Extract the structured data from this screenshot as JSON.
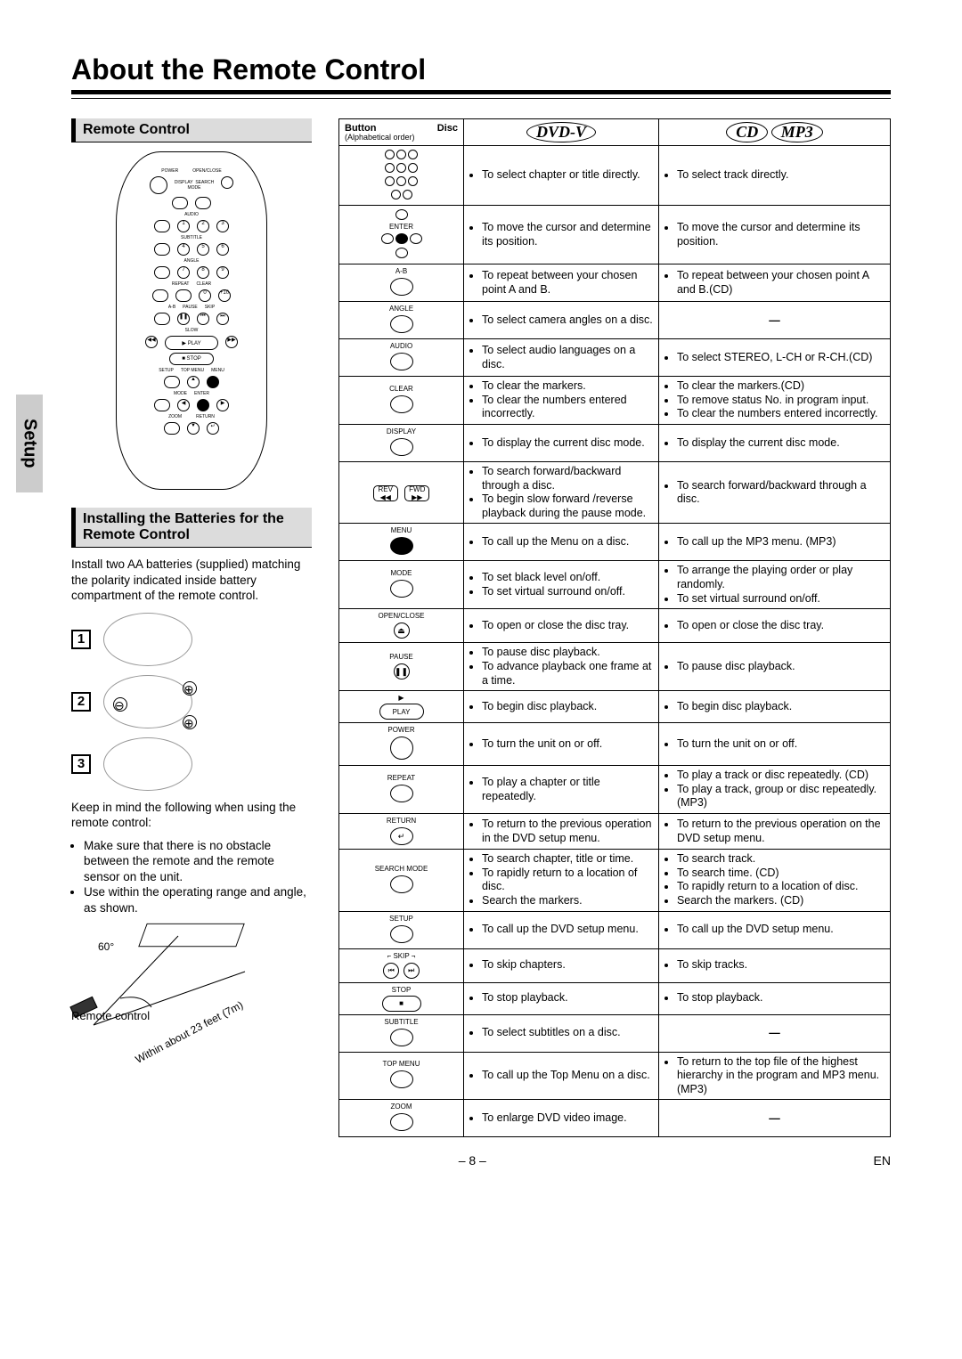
{
  "page_title": "About the Remote Control",
  "setup_tab": "Setup",
  "sections": {
    "remote_control": "Remote Control",
    "installing": "Installing the Batteries for the Remote Control"
  },
  "install_text": "Install two AA batteries (supplied) matching the polarity indicated inside battery compartment of the remote control.",
  "keep_in_mind": "Keep in mind the following when using the remote control:",
  "bullets": [
    "Make sure that there is no obstacle between the remote and the remote sensor on the unit.",
    "Use within the operating range and angle, as shown."
  ],
  "range": {
    "angle": "60°",
    "remote_label": "Remote control",
    "distance": "Within about 23 feet (7m)"
  },
  "steps": [
    "1",
    "2",
    "3"
  ],
  "table": {
    "header": {
      "btn": "Button",
      "disc": "Disc",
      "order": "(Alphabetical order)",
      "dvdv": "DVD-V",
      "cd": "CD",
      "mp3": "MP3"
    },
    "rows": [
      {
        "button": "numpad",
        "dvd": [
          "To select chapter or title directly."
        ],
        "cd": [
          "To select track directly."
        ]
      },
      {
        "button": "arrows",
        "label": "ENTER",
        "dvd": [
          "To move the cursor and determine its position."
        ],
        "cd": [
          "To move the cursor and determine its position."
        ]
      },
      {
        "button": "oval",
        "label": "A-B",
        "dvd": [
          "To repeat between your chosen point A and B."
        ],
        "cd": [
          "To repeat between your chosen point A and B.(CD)"
        ]
      },
      {
        "button": "oval",
        "label": "ANGLE",
        "dvd": [
          "To select camera angles on a disc."
        ],
        "cd": "dash"
      },
      {
        "button": "oval",
        "label": "AUDIO",
        "dvd": [
          "To select audio languages on a disc."
        ],
        "cd": [
          "To select STEREO, L-CH or R-CH.(CD)"
        ]
      },
      {
        "button": "oval",
        "label": "CLEAR",
        "dvd": [
          "To clear the markers.",
          "To clear the numbers entered incorrectly."
        ],
        "cd": [
          "To clear the markers.(CD)",
          "To remove status No. in program input.",
          "To clear the numbers entered incorrectly."
        ]
      },
      {
        "button": "oval",
        "label": "DISPLAY",
        "dvd": [
          "To display the current disc mode."
        ],
        "cd": [
          "To display the current disc mode."
        ]
      },
      {
        "button": "revfwd",
        "label": "REV / FWD",
        "dvd": [
          "To search forward/backward through a disc.",
          "To begin slow forward /reverse playback during the pause mode."
        ],
        "cd": [
          "To search forward/backward through a disc."
        ]
      },
      {
        "button": "filled",
        "label": "MENU",
        "dvd": [
          "To call up the Menu on a disc."
        ],
        "cd": [
          "To call up the MP3 menu. (MP3)"
        ]
      },
      {
        "button": "oval",
        "label": "MODE",
        "dvd": [
          "To set black level on/off.",
          "To set virtual surround on/off."
        ],
        "cd": [
          "To arrange the playing order or play randomly.",
          "To set virtual surround on/off."
        ]
      },
      {
        "button": "small",
        "label": "OPEN/CLOSE",
        "sym": "⏏",
        "dvd": [
          "To open or close the disc tray."
        ],
        "cd": [
          "To open or close the disc tray."
        ]
      },
      {
        "button": "small",
        "label": "PAUSE",
        "sym": "❚❚",
        "dvd": [
          "To pause disc playback.",
          "To advance playback one frame at a time."
        ],
        "cd": [
          "To pause disc playback."
        ]
      },
      {
        "button": "playbar",
        "label": "PLAY",
        "sym": "▶",
        "dvd": [
          "To begin disc playback."
        ],
        "cd": [
          "To begin disc playback."
        ]
      },
      {
        "button": "bigcircle",
        "label": "POWER",
        "dvd": [
          "To turn the unit on or off."
        ],
        "cd": [
          "To turn the unit on or off."
        ]
      },
      {
        "button": "oval",
        "label": "REPEAT",
        "dvd": [
          "To play a chapter or title repeatedly."
        ],
        "cd": [
          "To play a track or disc repeatedly. (CD)",
          "To play a track, group or disc repeatedly. (MP3)"
        ]
      },
      {
        "button": "return",
        "label": "RETURN",
        "dvd": [
          "To return to the previous operation in the DVD setup menu."
        ],
        "cd": [
          "To return to the previous operation on the DVD setup menu."
        ]
      },
      {
        "button": "oval",
        "label": "SEARCH MODE",
        "dvd": [
          "To search chapter, title or time.",
          "To rapidly return to a location of disc.",
          "Search the markers."
        ],
        "cd": [
          "To search track.",
          "To search time. (CD)",
          "To rapidly return to a location of disc.",
          "Search the markers. (CD)"
        ]
      },
      {
        "button": "oval",
        "label": "SETUP",
        "dvd": [
          "To call up the DVD setup menu."
        ],
        "cd": [
          "To call up the DVD setup menu."
        ]
      },
      {
        "button": "skip",
        "label": "SKIP",
        "dvd": [
          "To skip chapters."
        ],
        "cd": [
          "To skip tracks."
        ]
      },
      {
        "button": "stopbar",
        "label": "STOP",
        "sym": "■",
        "dvd": [
          "To stop playback."
        ],
        "cd": [
          "To stop playback."
        ]
      },
      {
        "button": "oval",
        "label": "SUBTITLE",
        "dvd": [
          "To select subtitles on a disc."
        ],
        "cd": "dash"
      },
      {
        "button": "oval",
        "label": "TOP MENU",
        "dvd": [
          "To call up the Top Menu on a disc."
        ],
        "cd": [
          "To return to the top file of the highest hierarchy in the program and MP3 menu. (MP3)"
        ]
      },
      {
        "button": "oval",
        "label": "ZOOM",
        "dvd": [
          "To enlarge DVD video image."
        ],
        "cd": "dash"
      }
    ]
  },
  "footer": {
    "page": "– 8 –",
    "lang": "EN"
  }
}
